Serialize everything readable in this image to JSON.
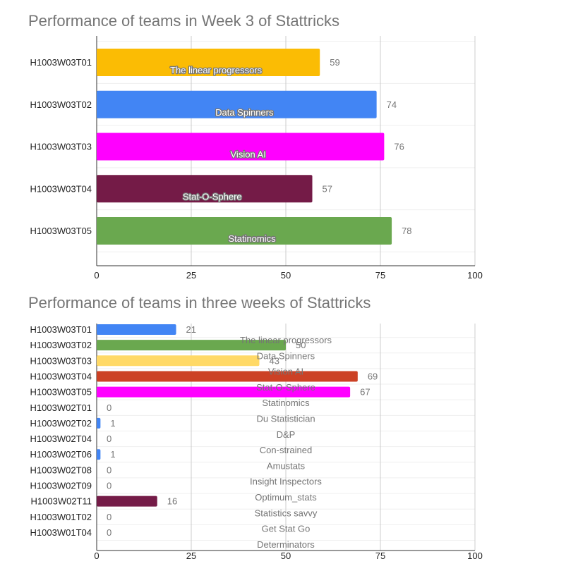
{
  "chart_data": [
    {
      "type": "bar",
      "orientation": "horizontal",
      "title": "Performance of teams in Week 3 of Stattricks",
      "categories": [
        "H1003W03T01",
        "H1003W03T02",
        "H1003W03T03",
        "H1003W03T04",
        "H1003W03T05"
      ],
      "values": [
        59,
        74,
        76,
        57,
        78
      ],
      "team_names": [
        "The linear progressors",
        "Data Spinners",
        "Vision AI",
        "Stat-O-Sphere",
        "Statinomics"
      ],
      "colors": [
        "#fbbc04",
        "#4285f4",
        "#ff00ff",
        "#741b47",
        "#6aa84f"
      ],
      "xlim": [
        0,
        100
      ],
      "xticks": [
        0,
        25,
        50,
        75,
        100
      ],
      "grid": true
    },
    {
      "type": "bar",
      "orientation": "horizontal",
      "title": "Performance of teams in three weeks of Stattricks",
      "categories": [
        "H1003W03T01",
        "H1003W03T02",
        "H1003W03T03",
        "H1003W03T04",
        "H1003W03T05",
        "H1003W02T01",
        "H1003W02T02",
        "H1003W02T04",
        "H1003W02T06",
        "H1003W02T08",
        "H1003W02T09",
        "H1003W02T11",
        "H1003W01T02",
        "H1003W01T04"
      ],
      "values": [
        21,
        50,
        43,
        69,
        67,
        0,
        1,
        0,
        1,
        0,
        0,
        16,
        0,
        0
      ],
      "team_names": [
        "The linear progressors",
        "Data Spinners",
        "Vision AI",
        "Stat-O-Sphere",
        "Statinomics",
        "Du Statistician",
        "D&P",
        "Con-strained",
        "Amustats",
        "Insight Inspectors",
        "Optimum_stats",
        "Statistics savvy",
        "Get Stat Go",
        "Determinators"
      ],
      "colors": [
        "#4285f4",
        "#6aa84f",
        "#ffd966",
        "#cc4125",
        "#ff00ff",
        "#4285f4",
        "#4285f4",
        "#4285f4",
        "#4285f4",
        "#4285f4",
        "#4285f4",
        "#741b47",
        "#4285f4",
        "#4285f4"
      ],
      "xlim": [
        0,
        100
      ],
      "xticks": [
        0,
        25,
        50,
        75,
        100
      ],
      "grid": true
    }
  ]
}
